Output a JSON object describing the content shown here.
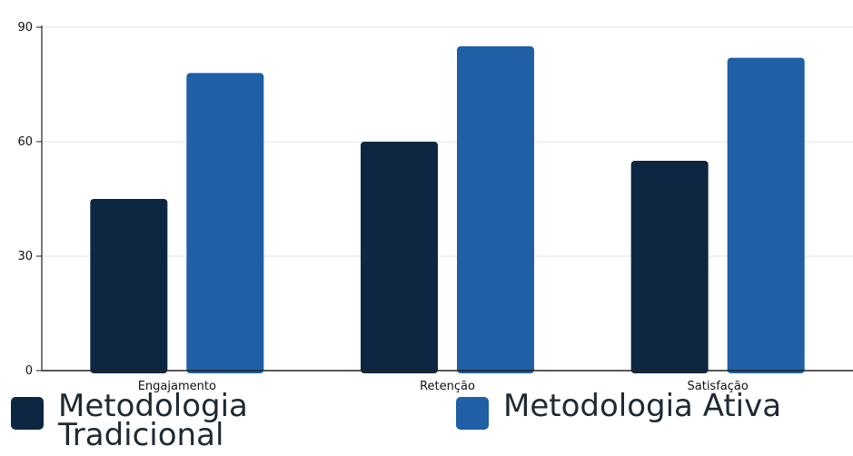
{
  "chart_data": {
    "type": "bar",
    "categories": [
      "Engajamento",
      "Retenção",
      "Satisfação"
    ],
    "series": [
      {
        "name": "Metodologia Tradicional",
        "color": "#0d2742",
        "values": [
          45,
          60,
          55
        ]
      },
      {
        "name": "Metodologia Ativa",
        "color": "#1f5fa5",
        "values": [
          78,
          85,
          82
        ]
      }
    ],
    "yticks": [
      0,
      30,
      60,
      90
    ],
    "ylim": [
      0,
      90
    ],
    "grid": true,
    "legend_position": "bottom"
  }
}
